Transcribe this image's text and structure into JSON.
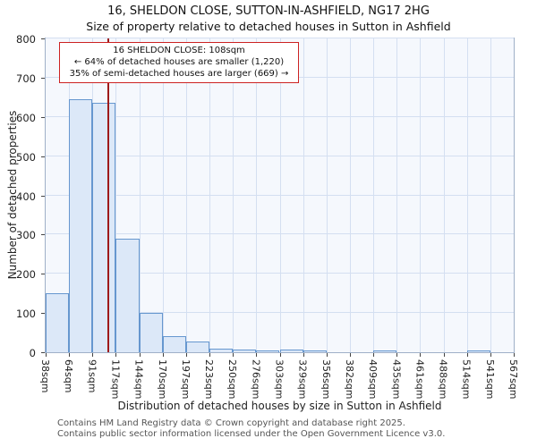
{
  "title": {
    "line1": "16, SHELDON CLOSE, SUTTON-IN-ASHFIELD, NG17 2HG",
    "line2": "Size of property relative to detached houses in Sutton in Ashfield"
  },
  "chart_data": {
    "type": "bar",
    "title": "Size of property relative to detached houses in Sutton in Ashfield",
    "xlabel": "Distribution of detached houses by size in Sutton in Ashfield",
    "ylabel": "Number of detached properties",
    "ylim": [
      0,
      800
    ],
    "ytick_step": 100,
    "grid": true,
    "bin_edges_sqm": [
      38,
      64,
      91,
      117,
      144,
      170,
      197,
      223,
      250,
      276,
      303,
      329,
      356,
      382,
      409,
      435,
      461,
      488,
      514,
      541,
      567
    ],
    "tick_labels": [
      "38sqm",
      "64sqm",
      "91sqm",
      "117sqm",
      "144sqm",
      "170sqm",
      "197sqm",
      "223sqm",
      "250sqm",
      "276sqm",
      "303sqm",
      "329sqm",
      "356sqm",
      "382sqm",
      "409sqm",
      "435sqm",
      "461sqm",
      "488sqm",
      "514sqm",
      "541sqm",
      "567sqm"
    ],
    "values": [
      150,
      645,
      635,
      290,
      100,
      42,
      27,
      10,
      8,
      3,
      6,
      2,
      0,
      0,
      3,
      0,
      0,
      0,
      3,
      0
    ],
    "marker": {
      "value_sqm": 108,
      "color": "#9e1a1a"
    },
    "bar_fill": "#dce8f8",
    "bar_edge": "#6697cf"
  },
  "annotation": {
    "line1": "16 SHELDON CLOSE: 108sqm",
    "line2": "← 64% of detached houses are smaller (1,220)",
    "line3": "35% of semi-detached houses are larger (669) →"
  },
  "footer": {
    "line1": "Contains HM Land Registry data © Crown copyright and database right 2025.",
    "line2": "Contains public sector information licensed under the Open Government Licence v3.0."
  }
}
